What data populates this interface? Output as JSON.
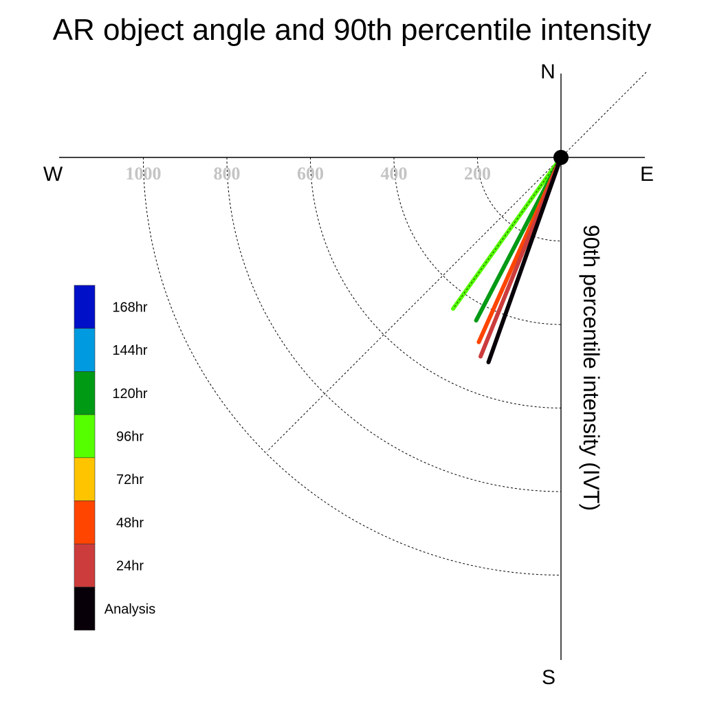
{
  "chart_data": {
    "type": "polar-vector",
    "title": "AR object angle and 90th percentile intensity",
    "ylabel": "90th percentile intensity (IVT)",
    "directions": {
      "north": "N",
      "south": "S",
      "east": "E",
      "west": "W"
    },
    "radial_ticks": [
      200,
      400,
      600,
      800,
      1000
    ],
    "radial_range": [
      0,
      1200
    ],
    "grid": true,
    "legend_position": "left",
    "series": [
      {
        "name": "96hr",
        "color": "#55ff00",
        "angle_deg": 215.5,
        "intensity": 445
      },
      {
        "name": "120hr",
        "color": "#009a14",
        "angle_deg": 207.5,
        "intensity": 440
      },
      {
        "name": "48hr",
        "color": "#ff4500",
        "angle_deg": 204.0,
        "intensity": 484
      },
      {
        "name": "24hr",
        "color": "#cc3c3c",
        "angle_deg": 202.0,
        "intensity": 514
      },
      {
        "name": "Analysis",
        "color": "#080008",
        "angle_deg": 199.5,
        "intensity": 520
      }
    ],
    "legend": [
      {
        "label": "168hr",
        "color": "#0010c8"
      },
      {
        "label": "144hr",
        "color": "#009ae0"
      },
      {
        "label": "120hr",
        "color": "#009a14"
      },
      {
        "label": "96hr",
        "color": "#55ff00"
      },
      {
        "label": "72hr",
        "color": "#ffc400"
      },
      {
        "label": "48hr",
        "color": "#ff4500"
      },
      {
        "label": "24hr",
        "color": "#cc3c3c"
      },
      {
        "label": "Analysis",
        "color": "#080008"
      }
    ]
  }
}
